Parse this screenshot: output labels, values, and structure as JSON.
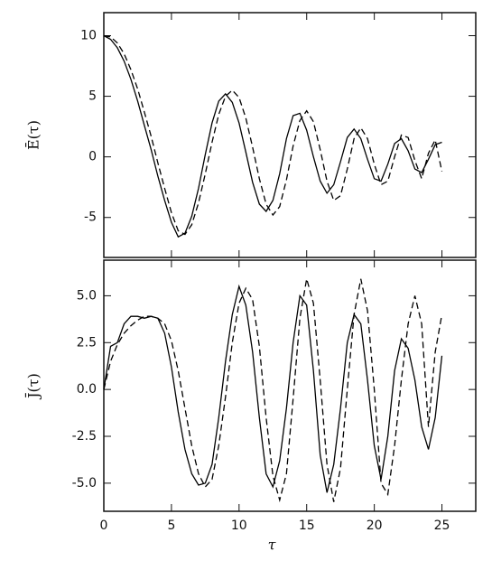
{
  "chart_data": [
    {
      "type": "line",
      "ylabel": "Ē(τ)",
      "x": [
        0,
        0.5,
        1,
        1.5,
        2,
        2.5,
        3,
        3.5,
        4,
        4.5,
        5,
        5.5,
        6,
        6.5,
        7,
        7.5,
        8,
        8.5,
        9,
        9.5,
        10,
        10.5,
        11,
        11.5,
        12,
        12.5,
        13,
        13.5,
        14,
        14.5,
        15,
        15.5,
        16,
        16.5,
        17,
        17.5,
        18,
        18.5,
        19,
        19.5,
        20,
        20.5,
        21,
        21.5,
        22,
        22.5,
        23,
        23.5,
        24,
        24.5,
        25
      ],
      "series": [
        {
          "color": "#000000",
          "style": "solid",
          "values": [
            10,
            9.7,
            9,
            7.9,
            6.4,
            4.6,
            2.6,
            0.6,
            -1.6,
            -3.6,
            -5.4,
            -6.6,
            -6.3,
            -4.9,
            -2.6,
            0.2,
            2.8,
            4.6,
            5.2,
            4.5,
            2.8,
            0.4,
            -2.1,
            -3.9,
            -4.5,
            -3.6,
            -1.4,
            1.5,
            3.4,
            3.6,
            2.2,
            0,
            -2,
            -3,
            -2.3,
            -0.4,
            1.6,
            2.3,
            1.5,
            -0.2,
            -1.8,
            -2,
            -0.6,
            1.1,
            1.5,
            0.5,
            -1,
            -1.3,
            -0.2,
            1,
            1.2
          ]
        },
        {
          "color": "#000000",
          "style": "dashed",
          "values": [
            10,
            9.9,
            9.4,
            8.5,
            7.2,
            5.6,
            3.7,
            1.7,
            -0.5,
            -2.6,
            -4.6,
            -6.1,
            -6.4,
            -5.6,
            -3.8,
            -1.4,
            1.2,
            3.5,
            5,
            5.5,
            4.9,
            3.2,
            0.8,
            -1.8,
            -3.9,
            -4.8,
            -4.1,
            -1.9,
            0.9,
            3,
            3.8,
            2.9,
            0.6,
            -2,
            -3.6,
            -3.2,
            -1,
            1.5,
            2.4,
            1.5,
            -0.6,
            -2.3,
            -2,
            0,
            1.8,
            1.6,
            -0.3,
            -1.8,
            0.3,
            1.4,
            -1.2
          ]
        }
      ],
      "xlim": [
        0,
        27.5
      ],
      "xticks": [
        0,
        5,
        10,
        15,
        20,
        25
      ],
      "ylim": [
        -8.3,
        11.9
      ],
      "yticks": [
        -5,
        0,
        5,
        10
      ]
    },
    {
      "type": "line",
      "ylabel": "J̄(τ)",
      "xlabel": "τ",
      "x": [
        0,
        0.5,
        1,
        1.5,
        2,
        2.5,
        3,
        3.5,
        4,
        4.5,
        5,
        5.5,
        6,
        6.5,
        7,
        7.5,
        8,
        8.5,
        9,
        9.5,
        10,
        10.5,
        11,
        11.5,
        12,
        12.5,
        13,
        13.5,
        14,
        14.5,
        15,
        15.5,
        16,
        16.5,
        17,
        17.5,
        18,
        18.5,
        19,
        19.5,
        20,
        20.5,
        21,
        21.5,
        22,
        22.5,
        23,
        23.5,
        24,
        24.5,
        25
      ],
      "series": [
        {
          "color": "#000000",
          "style": "solid",
          "values": [
            0,
            2.3,
            2.5,
            3.5,
            3.9,
            3.9,
            3.8,
            3.9,
            3.8,
            3,
            1.2,
            -1.2,
            -3.2,
            -4.5,
            -5.1,
            -5,
            -4,
            -1.5,
            1.5,
            4,
            5.5,
            4.5,
            2,
            -1.5,
            -4.5,
            -5.2,
            -3.8,
            -1,
            2.5,
            5,
            4.5,
            1,
            -3.5,
            -5.5,
            -4,
            -1,
            2.5,
            4,
            3.5,
            0.5,
            -3,
            -4.8,
            -2.5,
            1,
            2.7,
            2.2,
            0.5,
            -2,
            -3.2,
            -1.5,
            1.8
          ]
        },
        {
          "color": "#000000",
          "style": "dashed",
          "values": [
            0,
            1.5,
            2.4,
            3,
            3.4,
            3.7,
            3.9,
            3.9,
            3.8,
            3.5,
            2.6,
            1,
            -1,
            -3,
            -4.5,
            -5.2,
            -4.8,
            -3,
            -0.4,
            2.5,
            4.6,
            5.4,
            4.8,
            2.3,
            -1.5,
            -4.6,
            -5.9,
            -4.5,
            -0.5,
            3.8,
            5.9,
            4.6,
            0.5,
            -4,
            -6,
            -4.2,
            0,
            4,
            5.9,
            4.2,
            0,
            -5,
            -5.6,
            -3,
            0.5,
            3.5,
            5,
            3.5,
            -2,
            2,
            4
          ]
        }
      ],
      "xlim": [
        0,
        27.5
      ],
      "xticks": [
        0,
        5,
        10,
        15,
        20,
        25
      ],
      "ylim": [
        -6.5,
        6.9
      ],
      "yticks": [
        {
          "value": -5,
          "label": "-5.0"
        },
        -2.5,
        {
          "value": 0,
          "label": "0.0"
        },
        2.5,
        {
          "value": 5,
          "label": "5.0"
        }
      ]
    }
  ]
}
